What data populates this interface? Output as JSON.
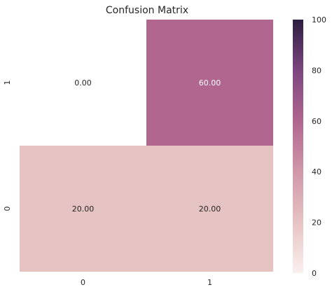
{
  "chart_data": {
    "type": "heatmap",
    "title": "Confusion Matrix",
    "x_categories": [
      "0",
      "1"
    ],
    "y_categories": [
      "1",
      "0"
    ],
    "values": [
      [
        0.0,
        60.0
      ],
      [
        20.0,
        20.0
      ]
    ],
    "cell_labels": [
      [
        "0.00",
        "60.00"
      ],
      [
        "20.00",
        "20.00"
      ]
    ],
    "colorbar": {
      "range": [
        0,
        100
      ],
      "ticks": [
        "0",
        "20",
        "40",
        "60",
        "80",
        "100"
      ]
    },
    "grid": false
  }
}
